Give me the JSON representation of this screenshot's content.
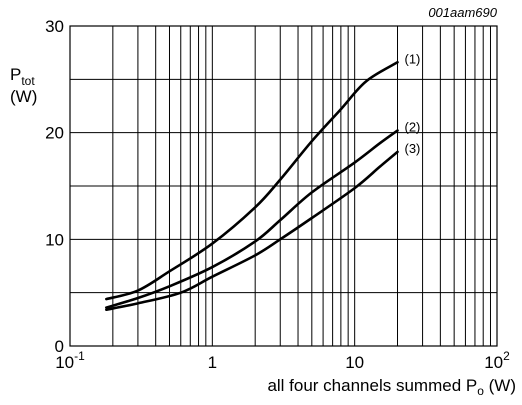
{
  "figure_id": "001aam690",
  "chart_data": {
    "type": "line",
    "x_scale": "log",
    "xlim": [
      0.1,
      100
    ],
    "ylim": [
      0,
      30
    ],
    "grid": true,
    "y_axis_label": {
      "main": "P",
      "sub": "tot",
      "unit": "(W)"
    },
    "x_axis_label": {
      "prefix": "all four channels summed P",
      "sub": "o",
      "suffix": " (W)"
    },
    "y_ticks": [
      {
        "value": 0,
        "label": "0"
      },
      {
        "value": 10,
        "label": "10"
      },
      {
        "value": 20,
        "label": "20"
      },
      {
        "value": 30,
        "label": "30"
      }
    ],
    "x_ticks": [
      {
        "value": 0.1,
        "base": "10",
        "exp": "-1"
      },
      {
        "value": 1,
        "base": "1",
        "exp": ""
      },
      {
        "value": 10,
        "base": "10",
        "exp": ""
      },
      {
        "value": 100,
        "base": "10",
        "exp": "2"
      }
    ],
    "series": [
      {
        "label": "(1)",
        "points": [
          [
            0.18,
            4.4
          ],
          [
            0.3,
            5.2
          ],
          [
            0.5,
            7.0
          ],
          [
            1.0,
            9.6
          ],
          [
            2.0,
            13.0
          ],
          [
            3.0,
            15.6
          ],
          [
            5.0,
            19.2
          ],
          [
            8.0,
            22.2
          ],
          [
            12.0,
            24.8
          ],
          [
            20.0,
            26.6
          ]
        ]
      },
      {
        "label": "(2)",
        "points": [
          [
            0.18,
            3.6
          ],
          [
            0.3,
            4.5
          ],
          [
            0.5,
            5.6
          ],
          [
            1.0,
            7.4
          ],
          [
            2.0,
            9.8
          ],
          [
            3.0,
            11.8
          ],
          [
            5.0,
            14.4
          ],
          [
            10.0,
            17.2
          ],
          [
            15.0,
            19.0
          ],
          [
            20.0,
            20.2
          ]
        ]
      },
      {
        "label": "(3)",
        "points": [
          [
            0.18,
            3.4
          ],
          [
            0.3,
            4.0
          ],
          [
            0.6,
            5.0
          ],
          [
            1.0,
            6.5
          ],
          [
            2.0,
            8.5
          ],
          [
            3.0,
            10.0
          ],
          [
            5.0,
            12.0
          ],
          [
            10.0,
            14.8
          ],
          [
            15.0,
            16.8
          ],
          [
            20.0,
            18.2
          ]
        ]
      }
    ]
  }
}
